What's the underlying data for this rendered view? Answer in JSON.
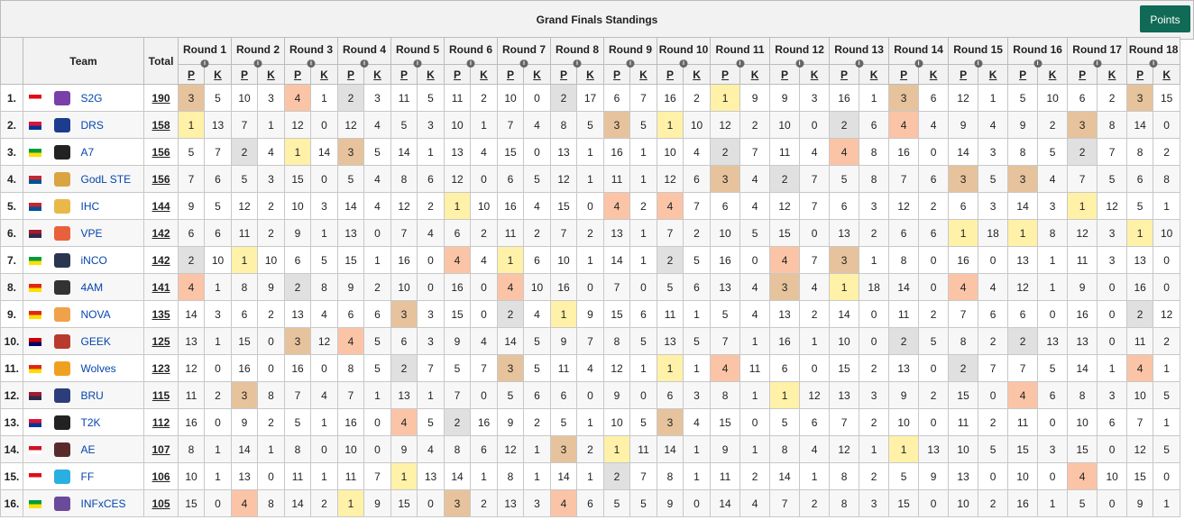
{
  "title": "Grand Finals Standings",
  "points_button": "Points",
  "headers": {
    "team": "Team",
    "total": "Total",
    "p": "P",
    "k": "K"
  },
  "rounds": [
    "Round 1",
    "Round 2",
    "Round 3",
    "Round 4",
    "Round 5",
    "Round 6",
    "Round 7",
    "Round 8",
    "Round 9",
    "Round 10",
    "Round 11",
    "Round 12",
    "Round 13",
    "Round 14",
    "Round 15",
    "Round 16",
    "Round 17",
    "Round 18"
  ],
  "info_icon_glyph": "i",
  "highlight_colors": {
    "first": "#fff1a8",
    "second": "#e0e0e0",
    "third": "#e6c39c",
    "fourth": "#fbc4a6"
  },
  "teams": [
    {
      "rank": "1.",
      "flag": "turkey",
      "flag_colors": [
        "#e30a17",
        "#ffffff"
      ],
      "logo_color": "#7a3fa8",
      "name": "S2G",
      "total": "190",
      "p": [
        "3",
        "10",
        "4",
        "2",
        "11",
        "11",
        "10",
        "2",
        "6",
        "16",
        "1",
        "9",
        "16",
        "3",
        "12",
        "5",
        "6",
        "3"
      ],
      "k": [
        "5",
        "3",
        "1",
        "3",
        "5",
        "2",
        "0",
        "17",
        "7",
        "2",
        "9",
        "3",
        "1",
        "6",
        "1",
        "10",
        "2",
        "15"
      ]
    },
    {
      "rank": "2.",
      "flag": "nepal",
      "flag_colors": [
        "#dc143c",
        "#003893"
      ],
      "logo_color": "#1d3b8f",
      "name": "DRS",
      "total": "158",
      "p": [
        "1",
        "7",
        "12",
        "12",
        "5",
        "10",
        "7",
        "8",
        "3",
        "1",
        "12",
        "10",
        "2",
        "4",
        "9",
        "9",
        "3",
        "14"
      ],
      "k": [
        "13",
        "1",
        "0",
        "4",
        "3",
        "1",
        "4",
        "5",
        "5",
        "10",
        "2",
        "0",
        "6",
        "4",
        "4",
        "2",
        "8",
        "0"
      ]
    },
    {
      "rank": "3.",
      "flag": "brazil",
      "flag_colors": [
        "#009c3b",
        "#ffdf00"
      ],
      "logo_color": "#222222",
      "name": "A7",
      "total": "156",
      "p": [
        "5",
        "2",
        "1",
        "3",
        "14",
        "13",
        "15",
        "13",
        "16",
        "10",
        "2",
        "11",
        "4",
        "16",
        "14",
        "8",
        "2",
        "8"
      ],
      "k": [
        "7",
        "4",
        "14",
        "5",
        "1",
        "4",
        "0",
        "1",
        "1",
        "4",
        "7",
        "4",
        "8",
        "0",
        "3",
        "5",
        "7",
        "2"
      ]
    },
    {
      "rank": "4.",
      "flag": "mongolia",
      "flag_colors": [
        "#c4272f",
        "#015197"
      ],
      "logo_color": "#d9a441",
      "name": "GodL STE",
      "total": "156",
      "p": [
        "7",
        "5",
        "15",
        "5",
        "8",
        "12",
        "6",
        "12",
        "11",
        "12",
        "3",
        "2",
        "5",
        "7",
        "3",
        "3",
        "7",
        "6"
      ],
      "k": [
        "6",
        "3",
        "0",
        "4",
        "6",
        "0",
        "5",
        "1",
        "1",
        "6",
        "4",
        "7",
        "8",
        "6",
        "5",
        "4",
        "5",
        "8"
      ]
    },
    {
      "rank": "5.",
      "flag": "mongolia",
      "flag_colors": [
        "#c4272f",
        "#015197"
      ],
      "logo_color": "#e8b84a",
      "name": "IHC",
      "total": "144",
      "p": [
        "9",
        "12",
        "10",
        "14",
        "12",
        "1",
        "16",
        "15",
        "4",
        "4",
        "6",
        "12",
        "6",
        "12",
        "6",
        "14",
        "1",
        "5"
      ],
      "k": [
        "5",
        "2",
        "3",
        "4",
        "2",
        "10",
        "4",
        "0",
        "2",
        "7",
        "4",
        "7",
        "3",
        "2",
        "3",
        "3",
        "12",
        "1"
      ]
    },
    {
      "rank": "6.",
      "flag": "thailand",
      "flag_colors": [
        "#a51931",
        "#2d2a4a"
      ],
      "logo_color": "#e8613c",
      "name": "VPE",
      "total": "142",
      "p": [
        "6",
        "11",
        "9",
        "13",
        "7",
        "6",
        "11",
        "7",
        "13",
        "7",
        "10",
        "15",
        "13",
        "6",
        "1",
        "1",
        "12",
        "1"
      ],
      "k": [
        "6",
        "2",
        "1",
        "0",
        "4",
        "2",
        "2",
        "2",
        "1",
        "2",
        "5",
        "0",
        "2",
        "6",
        "18",
        "8",
        "3",
        "10"
      ]
    },
    {
      "rank": "7.",
      "flag": "brazil",
      "flag_colors": [
        "#009c3b",
        "#ffdf00"
      ],
      "logo_color": "#2a3550",
      "name": "iNCO",
      "total": "142",
      "p": [
        "2",
        "1",
        "6",
        "15",
        "16",
        "4",
        "1",
        "10",
        "14",
        "2",
        "16",
        "4",
        "3",
        "8",
        "16",
        "13",
        "11",
        "13"
      ],
      "k": [
        "10",
        "10",
        "5",
        "1",
        "0",
        "4",
        "6",
        "1",
        "1",
        "5",
        "0",
        "7",
        "1",
        "0",
        "0",
        "1",
        "3",
        "0"
      ]
    },
    {
      "rank": "8.",
      "flag": "china",
      "flag_colors": [
        "#de2910",
        "#ffde00"
      ],
      "logo_color": "#333333",
      "name": "4AM",
      "total": "141",
      "p": [
        "4",
        "8",
        "2",
        "9",
        "10",
        "16",
        "4",
        "16",
        "7",
        "5",
        "13",
        "3",
        "1",
        "14",
        "4",
        "12",
        "9",
        "16"
      ],
      "k": [
        "1",
        "9",
        "8",
        "2",
        "0",
        "0",
        "10",
        "0",
        "0",
        "6",
        "4",
        "4",
        "18",
        "0",
        "4",
        "1",
        "0",
        "0"
      ]
    },
    {
      "rank": "9.",
      "flag": "china",
      "flag_colors": [
        "#de2910",
        "#ffde00"
      ],
      "logo_color": "#f0a24a",
      "name": "NOVA",
      "total": "135",
      "p": [
        "14",
        "6",
        "13",
        "6",
        "3",
        "15",
        "2",
        "1",
        "15",
        "11",
        "5",
        "13",
        "14",
        "11",
        "7",
        "6",
        "16",
        "2"
      ],
      "k": [
        "3",
        "2",
        "4",
        "6",
        "3",
        "0",
        "4",
        "9",
        "6",
        "1",
        "4",
        "2",
        "0",
        "2",
        "6",
        "0",
        "0",
        "12"
      ]
    },
    {
      "rank": "10.",
      "flag": "malaysia",
      "flag_colors": [
        "#cc0001",
        "#010066"
      ],
      "logo_color": "#b83a2e",
      "name": "GEEK",
      "total": "125",
      "p": [
        "13",
        "15",
        "3",
        "4",
        "6",
        "9",
        "14",
        "9",
        "8",
        "13",
        "7",
        "16",
        "10",
        "2",
        "8",
        "2",
        "13",
        "11"
      ],
      "k": [
        "1",
        "0",
        "12",
        "5",
        "3",
        "4",
        "5",
        "7",
        "5",
        "5",
        "1",
        "1",
        "0",
        "5",
        "2",
        "13",
        "0",
        "2"
      ]
    },
    {
      "rank": "11.",
      "flag": "china",
      "flag_colors": [
        "#de2910",
        "#ffde00"
      ],
      "logo_color": "#f0a020",
      "name": "Wolves",
      "total": "123",
      "p": [
        "12",
        "16",
        "16",
        "8",
        "2",
        "5",
        "3",
        "11",
        "12",
        "1",
        "4",
        "6",
        "15",
        "13",
        "2",
        "7",
        "14",
        "4"
      ],
      "k": [
        "0",
        "0",
        "0",
        "5",
        "7",
        "7",
        "5",
        "4",
        "1",
        "1",
        "11",
        "0",
        "2",
        "0",
        "7",
        "5",
        "1",
        "1"
      ]
    },
    {
      "rank": "12.",
      "flag": "thailand",
      "flag_colors": [
        "#a51931",
        "#2d2a4a"
      ],
      "logo_color": "#2c3e7a",
      "name": "BRU",
      "total": "115",
      "p": [
        "11",
        "3",
        "7",
        "7",
        "13",
        "7",
        "5",
        "6",
        "9",
        "6",
        "8",
        "1",
        "13",
        "9",
        "15",
        "4",
        "8",
        "10"
      ],
      "k": [
        "2",
        "8",
        "4",
        "1",
        "1",
        "0",
        "6",
        "0",
        "0",
        "3",
        "1",
        "12",
        "3",
        "2",
        "0",
        "6",
        "3",
        "5"
      ]
    },
    {
      "rank": "13.",
      "flag": "nepal",
      "flag_colors": [
        "#dc143c",
        "#003893"
      ],
      "logo_color": "#222222",
      "name": "T2K",
      "total": "112",
      "p": [
        "16",
        "9",
        "5",
        "16",
        "4",
        "2",
        "9",
        "5",
        "10",
        "3",
        "15",
        "5",
        "7",
        "10",
        "11",
        "11",
        "10",
        "7"
      ],
      "k": [
        "0",
        "2",
        "1",
        "0",
        "5",
        "16",
        "2",
        "1",
        "5",
        "4",
        "0",
        "6",
        "2",
        "0",
        "2",
        "0",
        "6",
        "1"
      ]
    },
    {
      "rank": "14.",
      "flag": "indonesia",
      "flag_colors": [
        "#ce1126",
        "#ffffff"
      ],
      "logo_color": "#5a2a2a",
      "name": "AE",
      "total": "107",
      "p": [
        "8",
        "14",
        "8",
        "10",
        "9",
        "8",
        "12",
        "3",
        "1",
        "14",
        "9",
        "8",
        "12",
        "1",
        "10",
        "15",
        "15",
        "12"
      ],
      "k": [
        "1",
        "1",
        "0",
        "0",
        "4",
        "6",
        "1",
        "2",
        "11",
        "1",
        "1",
        "4",
        "1",
        "13",
        "5",
        "3",
        "0",
        "5"
      ]
    },
    {
      "rank": "15.",
      "flag": "turkey",
      "flag_colors": [
        "#e30a17",
        "#ffffff"
      ],
      "logo_color": "#2ab0e0",
      "name": "FF",
      "total": "106",
      "p": [
        "10",
        "13",
        "11",
        "11",
        "1",
        "14",
        "8",
        "14",
        "2",
        "8",
        "11",
        "14",
        "8",
        "5",
        "13",
        "10",
        "4",
        "15"
      ],
      "k": [
        "1",
        "0",
        "1",
        "7",
        "13",
        "1",
        "1",
        "1",
        "7",
        "1",
        "2",
        "1",
        "2",
        "9",
        "0",
        "0",
        "10",
        "0"
      ]
    },
    {
      "rank": "16.",
      "flag": "brazil",
      "flag_colors": [
        "#009c3b",
        "#ffdf00"
      ],
      "logo_color": "#6a4a9a",
      "name": "INFxCES",
      "total": "105",
      "p": [
        "15",
        "4",
        "14",
        "1",
        "15",
        "3",
        "13",
        "4",
        "5",
        "9",
        "14",
        "7",
        "8",
        "15",
        "10",
        "16",
        "5",
        "9"
      ],
      "k": [
        "0",
        "8",
        "2",
        "9",
        "0",
        "2",
        "3",
        "6",
        "5",
        "0",
        "4",
        "2",
        "3",
        "0",
        "2",
        "1",
        "0",
        "1"
      ]
    }
  ]
}
